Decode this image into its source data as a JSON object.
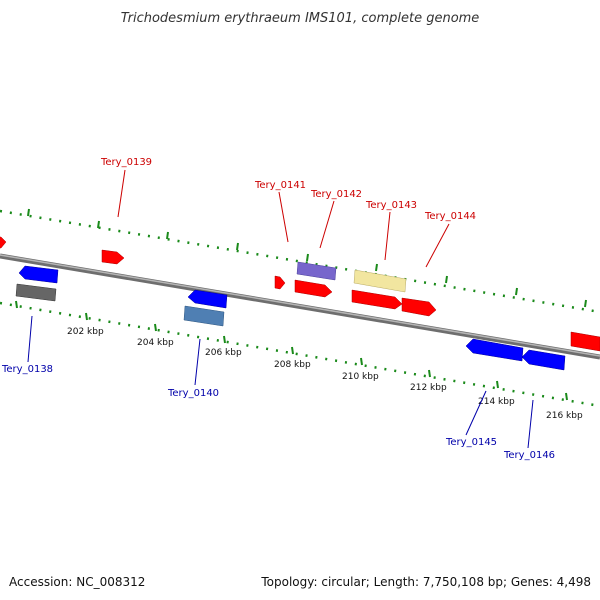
{
  "title": "Trichodesmium erythraeum IMS101, complete genome",
  "footer": {
    "accession": "Accession: NC_008312",
    "topology": "Topology: circular; Length: 7,750,108 bp; Genes: 4,498"
  },
  "scale_labels": [
    "202 kbp",
    "204 kbp",
    "206 kbp",
    "208 kbp",
    "210 kbp",
    "212 kbp",
    "214 kbp",
    "216 kbp"
  ],
  "genes_top": [
    {
      "label": "Tery_0139",
      "color": "#ff0000"
    },
    {
      "label": "Tery_0141",
      "color": "#ff0000"
    },
    {
      "label": "Tery_0142",
      "color": "#ff0000"
    },
    {
      "label": "Tery_0143",
      "color": "#ff0000"
    },
    {
      "label": "Tery_0144",
      "color": "#ff0000"
    }
  ],
  "genes_bottom": [
    {
      "label": "Tery_0138",
      "color": "#0000ff"
    },
    {
      "label": "Tery_0140",
      "color": "#0000ff"
    },
    {
      "label": "Tery_0145",
      "color": "#0000ff"
    },
    {
      "label": "Tery_0146",
      "color": "#0000ff"
    }
  ],
  "colors": {
    "forward_gene": "#ff0000",
    "reverse_gene": "#0000ff",
    "backbone": "#888888",
    "ticks": "#1a8a1a",
    "rna_gray": "#666666",
    "rna_steel": "#4f7fb3",
    "rna_violet": "#7766cc",
    "rna_yellow": "#f2e6a0"
  }
}
